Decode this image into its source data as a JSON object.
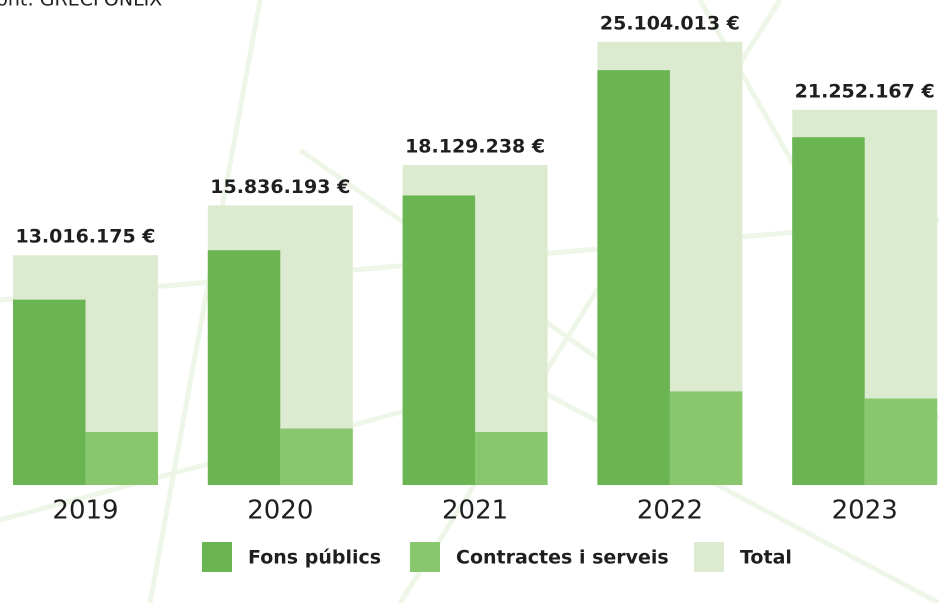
{
  "chart_data": {
    "type": "bar",
    "subtitle": "Font: GRECFONLIX",
    "categories": [
      "2019",
      "2020",
      "2021",
      "2022",
      "2023"
    ],
    "series": [
      {
        "name": "Fons públics",
        "color": "#6ab552",
        "values": [
          10500000,
          13300000,
          16400000,
          23500000,
          19700000
        ]
      },
      {
        "name": "Contractes i serveis",
        "color": "#88c76e",
        "values": [
          3000000,
          3200000,
          3000000,
          5300000,
          4900000
        ]
      }
    ],
    "total": {
      "name": "Total",
      "color": "#dcebd0",
      "values": [
        13016175,
        15836193,
        18129238,
        25104013,
        21252167
      ],
      "value_labels": [
        "13.016.175 €",
        "15.836.193 €",
        "18.129.238 €",
        "25.104.013 €",
        "21.252.167 €"
      ]
    },
    "ylim": [
      0,
      26000000
    ],
    "grid": false
  }
}
